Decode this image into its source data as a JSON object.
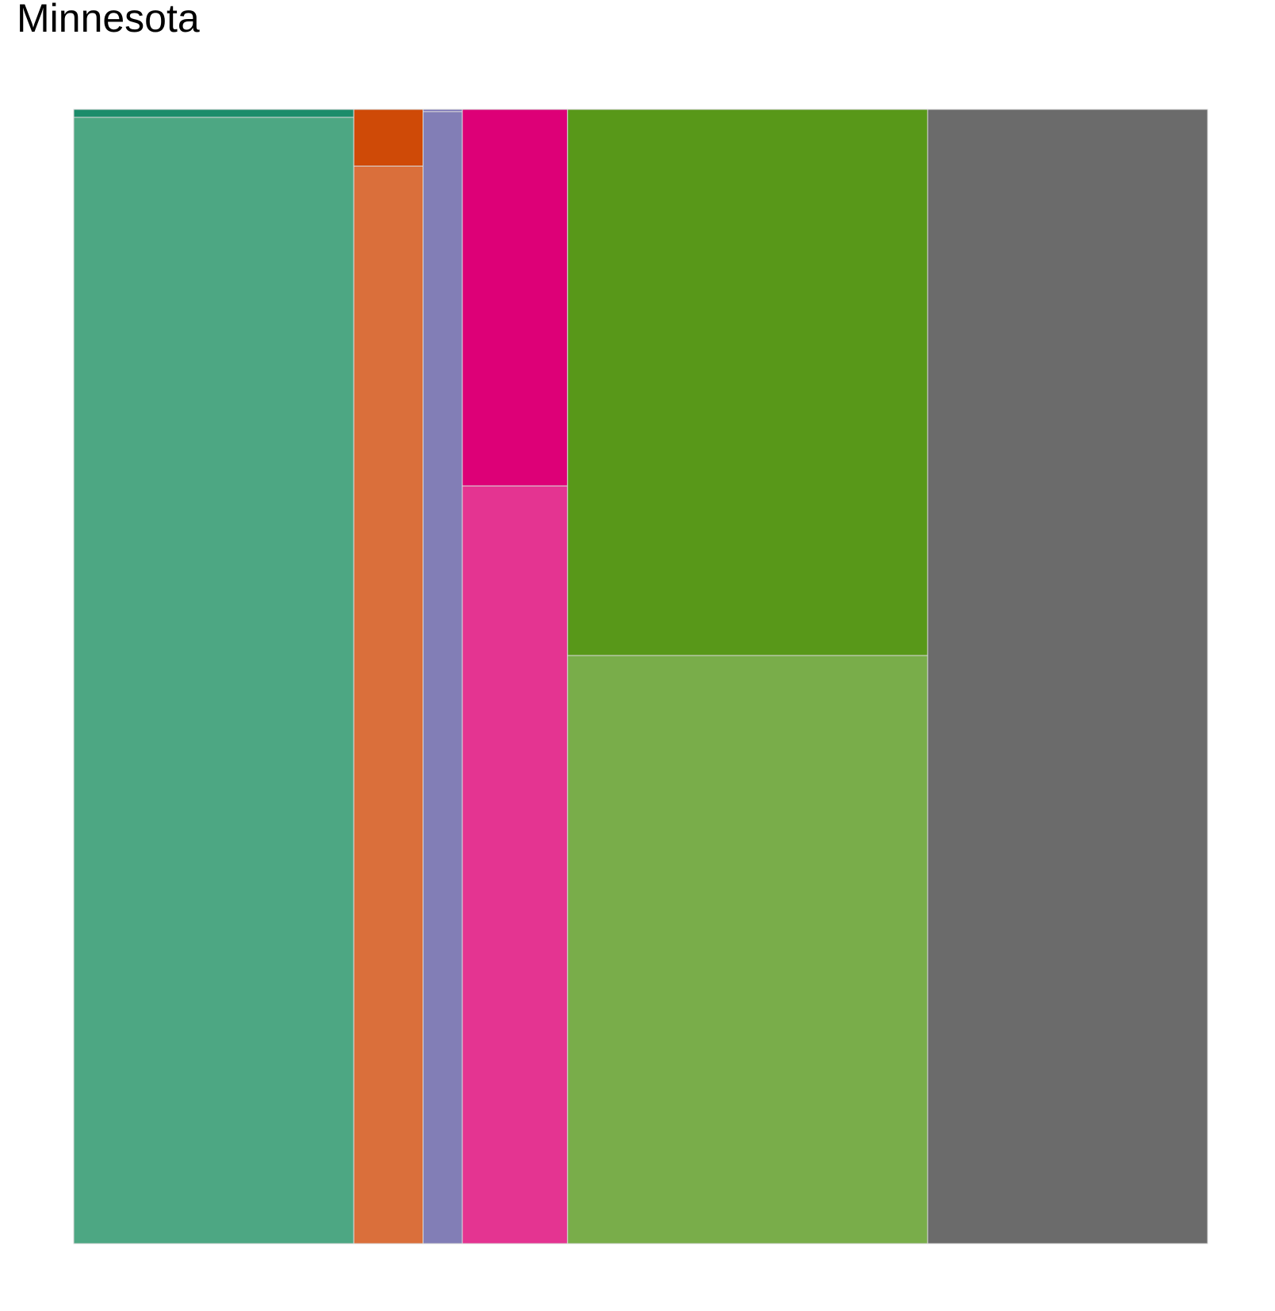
{
  "chart_data": {
    "type": "mosaic",
    "title": "Minnesota",
    "xlabel": "",
    "ylabel": "",
    "columns": [
      {
        "width_share": 0.247,
        "segments": [
          {
            "share": 0.007,
            "color": "#1B9E77"
          },
          {
            "share": 0.993,
            "color": "#4DA783"
          }
        ]
      },
      {
        "width_share": 0.0611,
        "segments": [
          {
            "share": 0.05,
            "color": "#D95F02"
          },
          {
            "share": 0.95,
            "color": "#DA6F3B"
          }
        ]
      },
      {
        "width_share": 0.0346,
        "segments": [
          {
            "share": 0.002,
            "color": "#7570B3"
          },
          {
            "share": 0.998,
            "color": "#827EB6"
          }
        ]
      },
      {
        "width_share": 0.0928,
        "segments": [
          {
            "share": 0.332,
            "color": "#E7298A"
          },
          {
            "share": 0.668,
            "color": "#E43491"
          }
        ]
      },
      {
        "width_share": 0.3176,
        "segments": [
          {
            "share": 0.4815,
            "color": "#66A61E"
          },
          {
            "share": 0.5185,
            "color": "#79AD4A"
          }
        ]
      },
      {
        "width_share": 0.2469,
        "segments": [
          {
            "share": 1.0,
            "color": "#6B6B6B"
          }
        ]
      }
    ]
  }
}
